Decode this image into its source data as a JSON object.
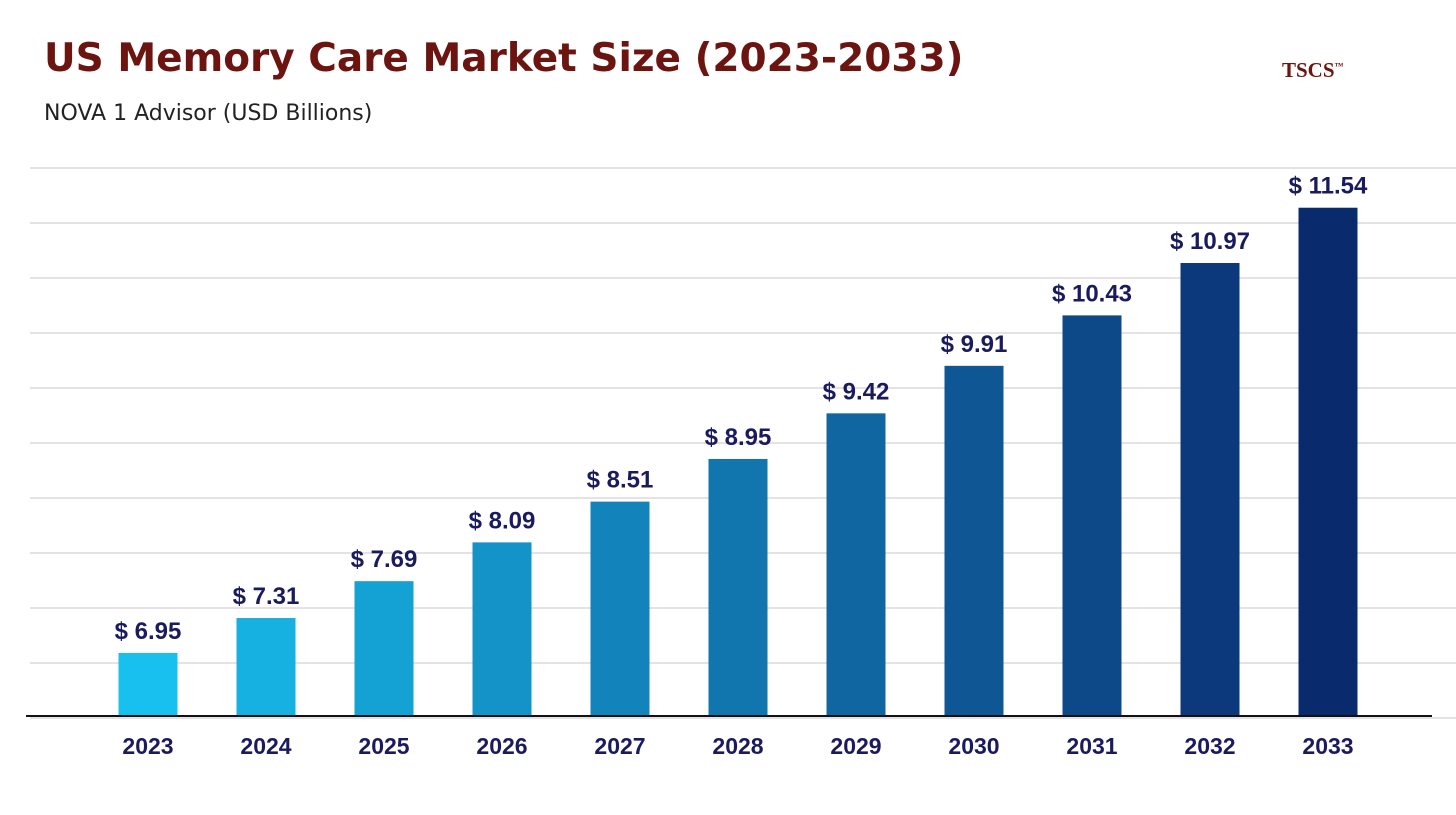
{
  "logo": {
    "text": "TSCS",
    "mark": "™"
  },
  "chart_data": {
    "type": "bar",
    "title": "US Memory Care Market Size (2023-2033)",
    "subtitle": "NOVA 1 Advisor (USD Billions)",
    "xlabel": "",
    "ylabel": "",
    "categories": [
      "2023",
      "2024",
      "2025",
      "2026",
      "2027",
      "2028",
      "2029",
      "2030",
      "2031",
      "2032",
      "2033"
    ],
    "values": [
      6.95,
      7.31,
      7.69,
      8.09,
      8.51,
      8.95,
      9.42,
      9.91,
      10.43,
      10.97,
      11.54
    ],
    "data_labels": [
      "$ 6.95",
      "$ 7.31",
      "$ 7.69",
      "$ 8.09",
      "$ 8.51",
      "$ 8.95",
      "$ 9.42",
      "$ 9.91",
      "$ 10.43",
      "$ 10.97",
      "$ 11.54"
    ],
    "ylim": [
      6.3,
      12
    ],
    "grid": true,
    "colors": {
      "start": "#17c0ee",
      "end": "#0a2a6e",
      "label": "#1a1a5e",
      "title": "#6b1410"
    }
  }
}
